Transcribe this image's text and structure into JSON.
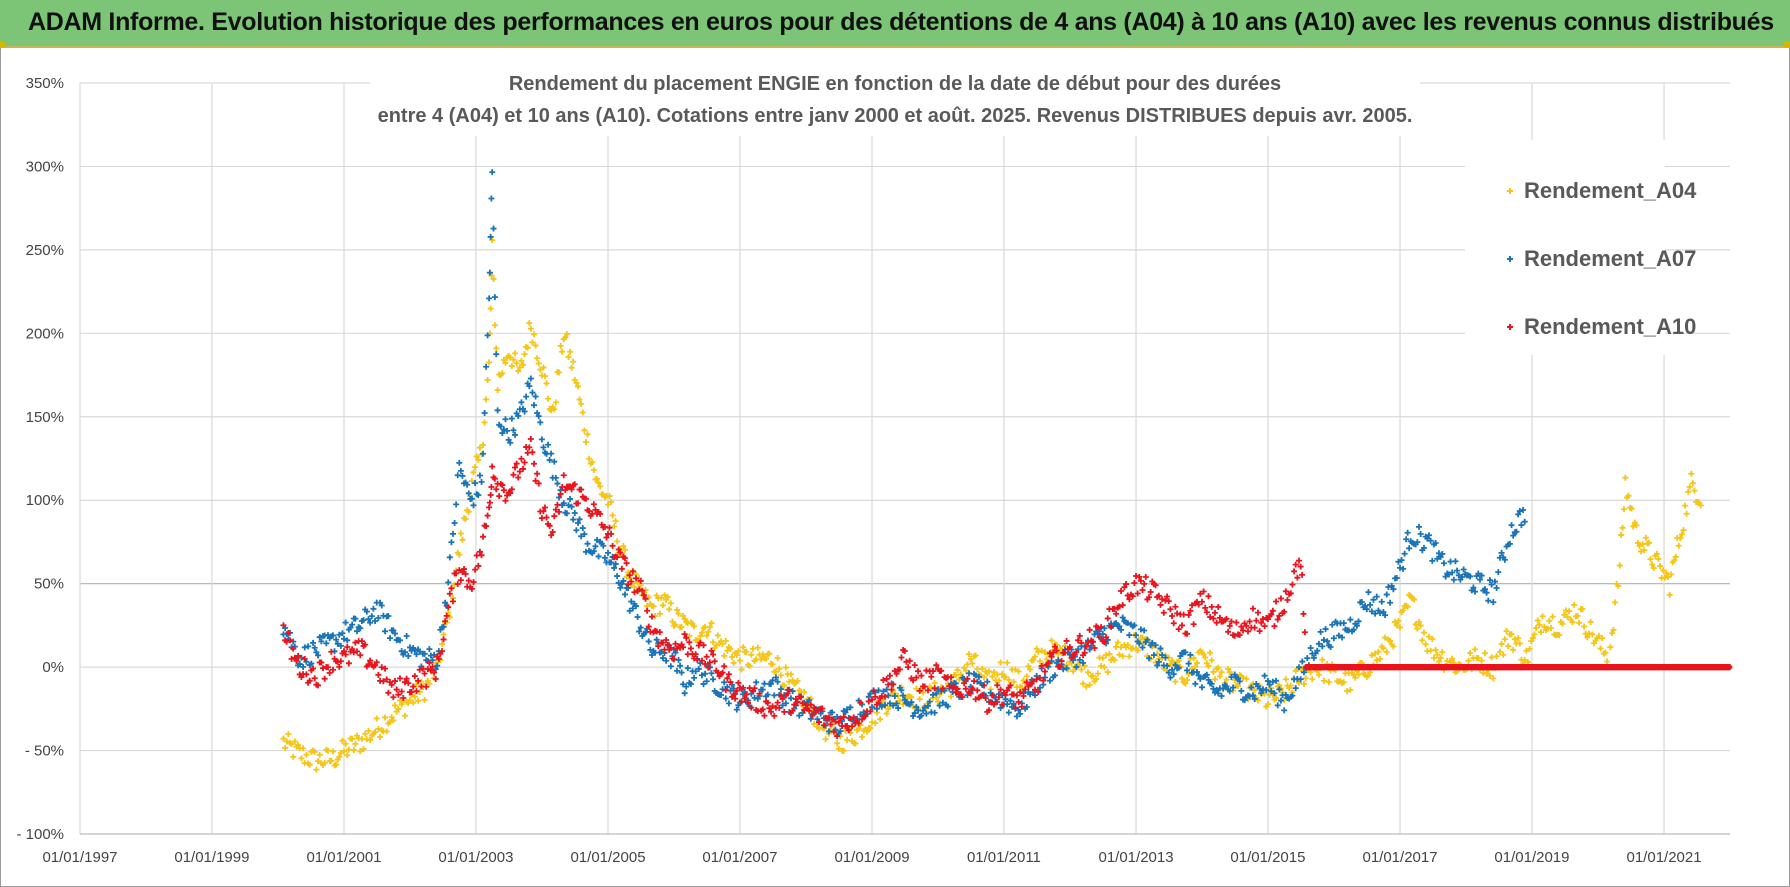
{
  "banner": {
    "title": "ADAM Informe. Evolution historique des performances en euros pour des détentions de 4 ans (A04) à 10 ans (A10) avec les revenus connus distribués",
    "color": "#7cc576"
  },
  "chart_data": {
    "type": "scatter",
    "title_line1": "Rendement du placement ENGIE en fonction de la date de début pour des durées",
    "title_line2": "entre 4 (A04) et 10 ans (A10).  Cotations entre janv 2000 et août. 2025. Revenus DISTRIBUES depuis avr. 2005.",
    "x_axis": {
      "type": "date",
      "range": [
        "1997-01-01",
        "2022-01-01"
      ],
      "tick_labels": [
        "01/01/1997",
        "01/01/1999",
        "01/01/2001",
        "01/01/2003",
        "01/01/2005",
        "01/01/2007",
        "01/01/2009",
        "01/01/2011",
        "01/01/2013",
        "01/01/2015",
        "01/01/2017",
        "01/01/2019",
        "01/01/2021"
      ]
    },
    "y_axis": {
      "range": [
        -100,
        350
      ],
      "unit": "%",
      "tick_values": [
        -100,
        -50,
        0,
        50,
        100,
        150,
        200,
        250,
        300,
        350
      ],
      "tick_labels": [
        "- 100%",
        "- 50%",
        "0%",
        "50%",
        "100%",
        "150%",
        "200%",
        "250%",
        "300%",
        "350%"
      ]
    },
    "grid": true,
    "legend_position": "top-right",
    "marker": "+",
    "series": [
      {
        "name": "Rendement_A04",
        "color": "#f5c518",
        "points": [
          [
            "2000-02-01",
            -45
          ],
          [
            "2000-05-01",
            -52
          ],
          [
            "2000-08-01",
            -56
          ],
          [
            "2000-11-01",
            -55
          ],
          [
            "2001-01-01",
            -50
          ],
          [
            "2001-04-01",
            -45
          ],
          [
            "2001-07-01",
            -37
          ],
          [
            "2001-10-01",
            -28
          ],
          [
            "2002-01-01",
            -20
          ],
          [
            "2002-04-01",
            -12
          ],
          [
            "2002-06-01",
            0
          ],
          [
            "2002-08-01",
            30
          ],
          [
            "2002-10-01",
            70
          ],
          [
            "2002-12-01",
            105
          ],
          [
            "2003-02-01",
            130
          ],
          [
            "2003-03-15",
            180
          ],
          [
            "2003-04-01",
            250
          ],
          [
            "2003-05-01",
            170
          ],
          [
            "2003-07-01",
            190
          ],
          [
            "2003-09-01",
            175
          ],
          [
            "2003-11-01",
            205
          ],
          [
            "2004-01-01",
            180
          ],
          [
            "2004-03-01",
            150
          ],
          [
            "2004-05-01",
            200
          ],
          [
            "2004-07-01",
            175
          ],
          [
            "2004-09-01",
            140
          ],
          [
            "2004-11-01",
            110
          ],
          [
            "2005-01-01",
            100
          ],
          [
            "2005-03-01",
            75
          ],
          [
            "2005-05-01",
            55
          ],
          [
            "2005-07-01",
            45
          ],
          [
            "2005-09-01",
            35
          ],
          [
            "2005-11-01",
            40
          ],
          [
            "2006-01-01",
            30
          ],
          [
            "2006-03-01",
            25
          ],
          [
            "2006-05-01",
            20
          ],
          [
            "2006-07-01",
            25
          ],
          [
            "2006-09-01",
            15
          ],
          [
            "2006-11-01",
            10
          ],
          [
            "2007-01-01",
            5
          ],
          [
            "2007-04-01",
            5
          ],
          [
            "2007-07-01",
            5
          ],
          [
            "2007-10-01",
            -10
          ],
          [
            "2008-01-01",
            -20
          ],
          [
            "2008-04-01",
            -35
          ],
          [
            "2008-07-01",
            -45
          ],
          [
            "2008-10-01",
            -40
          ],
          [
            "2009-01-01",
            -30
          ],
          [
            "2009-04-01",
            -20
          ],
          [
            "2009-07-01",
            -15
          ],
          [
            "2009-10-01",
            -20
          ],
          [
            "2010-01-01",
            -15
          ],
          [
            "2010-04-01",
            -10
          ],
          [
            "2010-07-01",
            5
          ],
          [
            "2010-10-01",
            -10
          ],
          [
            "2011-01-01",
            0
          ],
          [
            "2011-04-01",
            -10
          ],
          [
            "2011-07-01",
            5
          ],
          [
            "2011-10-01",
            10
          ],
          [
            "2012-01-01",
            5
          ],
          [
            "2012-04-01",
            -5
          ],
          [
            "2012-07-01",
            0
          ],
          [
            "2012-10-01",
            10
          ],
          [
            "2013-01-01",
            15
          ],
          [
            "2013-04-01",
            10
          ],
          [
            "2013-07-01",
            0
          ],
          [
            "2013-10-01",
            -5
          ],
          [
            "2014-01-01",
            10
          ],
          [
            "2014-04-01",
            -5
          ],
          [
            "2014-07-01",
            -10
          ],
          [
            "2014-10-01",
            -15
          ],
          [
            "2015-01-01",
            -20
          ],
          [
            "2015-04-01",
            -15
          ],
          [
            "2015-07-01",
            -5
          ],
          [
            "2015-10-01",
            0
          ],
          [
            "2016-01-01",
            -5
          ],
          [
            "2016-04-01",
            -10
          ],
          [
            "2016-07-01",
            0
          ],
          [
            "2016-10-01",
            10
          ],
          [
            "2017-01-01",
            25
          ],
          [
            "2017-03-01",
            40
          ],
          [
            "2017-06-01",
            15
          ],
          [
            "2017-09-01",
            5
          ],
          [
            "2017-12-01",
            0
          ],
          [
            "2018-03-01",
            5
          ],
          [
            "2018-06-01",
            0
          ],
          [
            "2018-09-01",
            20
          ],
          [
            "2018-12-01",
            5
          ],
          [
            "2019-03-01",
            30
          ],
          [
            "2019-06-01",
            25
          ],
          [
            "2019-09-01",
            35
          ],
          [
            "2019-12-01",
            20
          ],
          [
            "2020-03-01",
            5
          ],
          [
            "2020-05-01",
            60
          ],
          [
            "2020-06-01",
            110
          ],
          [
            "2020-08-01",
            80
          ],
          [
            "2020-10-01",
            70
          ],
          [
            "2020-12-01",
            60
          ],
          [
            "2021-02-01",
            50
          ],
          [
            "2021-04-01",
            80
          ],
          [
            "2021-06-01",
            110
          ],
          [
            "2021-08-01",
            100
          ]
        ]
      },
      {
        "name": "Rendement_A07",
        "color": "#1a74b8",
        "points": [
          [
            "2000-02-01",
            25
          ],
          [
            "2000-05-01",
            5
          ],
          [
            "2000-08-01",
            10
          ],
          [
            "2000-11-01",
            15
          ],
          [
            "2001-01-01",
            20
          ],
          [
            "2001-04-01",
            25
          ],
          [
            "2001-07-01",
            35
          ],
          [
            "2001-10-01",
            20
          ],
          [
            "2002-01-01",
            10
          ],
          [
            "2002-04-01",
            5
          ],
          [
            "2002-06-01",
            5
          ],
          [
            "2002-08-01",
            50
          ],
          [
            "2002-10-01",
            120
          ],
          [
            "2002-12-01",
            100
          ],
          [
            "2003-02-01",
            110
          ],
          [
            "2003-03-15",
            220
          ],
          [
            "2003-04-01",
            295
          ],
          [
            "2003-05-01",
            150
          ],
          [
            "2003-07-01",
            140
          ],
          [
            "2003-09-01",
            150
          ],
          [
            "2003-11-01",
            170
          ],
          [
            "2004-01-01",
            140
          ],
          [
            "2004-03-01",
            120
          ],
          [
            "2004-05-01",
            100
          ],
          [
            "2004-07-01",
            90
          ],
          [
            "2004-09-01",
            75
          ],
          [
            "2004-11-01",
            70
          ],
          [
            "2005-01-01",
            65
          ],
          [
            "2005-03-01",
            55
          ],
          [
            "2005-05-01",
            40
          ],
          [
            "2005-07-01",
            25
          ],
          [
            "2005-09-01",
            10
          ],
          [
            "2005-11-01",
            10
          ],
          [
            "2006-01-01",
            5
          ],
          [
            "2006-03-01",
            -10
          ],
          [
            "2006-05-01",
            0
          ],
          [
            "2006-07-01",
            -5
          ],
          [
            "2006-09-01",
            -10
          ],
          [
            "2006-11-01",
            -15
          ],
          [
            "2007-01-01",
            -20
          ],
          [
            "2007-04-01",
            -15
          ],
          [
            "2007-07-01",
            -10
          ],
          [
            "2007-10-01",
            -20
          ],
          [
            "2008-01-01",
            -25
          ],
          [
            "2008-04-01",
            -30
          ],
          [
            "2008-07-01",
            -35
          ],
          [
            "2008-10-01",
            -25
          ],
          [
            "2009-01-01",
            -20
          ],
          [
            "2009-04-01",
            -15
          ],
          [
            "2009-07-01",
            -20
          ],
          [
            "2009-10-01",
            -25
          ],
          [
            "2010-01-01",
            -20
          ],
          [
            "2010-04-01",
            -15
          ],
          [
            "2010-07-01",
            -10
          ],
          [
            "2010-10-01",
            -15
          ],
          [
            "2011-01-01",
            -20
          ],
          [
            "2011-04-01",
            -25
          ],
          [
            "2011-07-01",
            -10
          ],
          [
            "2011-10-01",
            0
          ],
          [
            "2012-01-01",
            5
          ],
          [
            "2012-04-01",
            10
          ],
          [
            "2012-07-01",
            20
          ],
          [
            "2012-10-01",
            25
          ],
          [
            "2013-01-01",
            20
          ],
          [
            "2013-04-01",
            10
          ],
          [
            "2013-07-01",
            0
          ],
          [
            "2013-10-01",
            5
          ],
          [
            "2014-01-01",
            -10
          ],
          [
            "2014-04-01",
            -15
          ],
          [
            "2014-07-01",
            -10
          ],
          [
            "2014-10-01",
            -15
          ],
          [
            "2015-01-01",
            -10
          ],
          [
            "2015-04-01",
            -20
          ],
          [
            "2015-07-01",
            -5
          ],
          [
            "2015-10-01",
            15
          ],
          [
            "2016-01-01",
            20
          ],
          [
            "2016-04-01",
            25
          ],
          [
            "2016-07-01",
            40
          ],
          [
            "2016-10-01",
            35
          ],
          [
            "2017-01-01",
            60
          ],
          [
            "2017-03-01",
            80
          ],
          [
            "2017-06-01",
            75
          ],
          [
            "2017-09-01",
            60
          ],
          [
            "2017-12-01",
            55
          ],
          [
            "2018-03-01",
            50
          ],
          [
            "2018-06-01",
            45
          ],
          [
            "2018-09-01",
            80
          ],
          [
            "2018-12-01",
            95
          ]
        ]
      },
      {
        "name": "Rendement_A10",
        "color": "#e8141e",
        "points": [
          [
            "2000-02-01",
            20
          ],
          [
            "2000-05-01",
            0
          ],
          [
            "2000-08-01",
            -5
          ],
          [
            "2000-11-01",
            5
          ],
          [
            "2001-01-01",
            5
          ],
          [
            "2001-04-01",
            10
          ],
          [
            "2001-07-01",
            0
          ],
          [
            "2001-10-01",
            -15
          ],
          [
            "2002-01-01",
            -10
          ],
          [
            "2002-04-01",
            -5
          ],
          [
            "2002-06-01",
            0
          ],
          [
            "2002-08-01",
            35
          ],
          [
            "2002-10-01",
            60
          ],
          [
            "2002-12-01",
            50
          ],
          [
            "2003-02-01",
            70
          ],
          [
            "2003-03-15",
            95
          ],
          [
            "2003-04-01",
            120
          ],
          [
            "2003-05-01",
            110
          ],
          [
            "2003-07-01",
            105
          ],
          [
            "2003-09-01",
            120
          ],
          [
            "2003-11-01",
            130
          ],
          [
            "2004-01-01",
            95
          ],
          [
            "2004-03-01",
            80
          ],
          [
            "2004-05-01",
            110
          ],
          [
            "2004-07-01",
            105
          ],
          [
            "2004-09-01",
            100
          ],
          [
            "2004-11-01",
            90
          ],
          [
            "2005-01-01",
            80
          ],
          [
            "2005-03-01",
            65
          ],
          [
            "2005-05-01",
            55
          ],
          [
            "2005-07-01",
            45
          ],
          [
            "2005-09-01",
            25
          ],
          [
            "2005-11-01",
            15
          ],
          [
            "2006-01-01",
            10
          ],
          [
            "2006-03-01",
            15
          ],
          [
            "2006-05-01",
            10
          ],
          [
            "2006-07-01",
            5
          ],
          [
            "2006-09-01",
            0
          ],
          [
            "2006-11-01",
            -10
          ],
          [
            "2007-01-01",
            -15
          ],
          [
            "2007-04-01",
            -20
          ],
          [
            "2007-07-01",
            -25
          ],
          [
            "2007-10-01",
            -20
          ],
          [
            "2008-01-01",
            -25
          ],
          [
            "2008-04-01",
            -30
          ],
          [
            "2008-07-01",
            -35
          ],
          [
            "2008-10-01",
            -30
          ],
          [
            "2009-01-01",
            -20
          ],
          [
            "2009-04-01",
            -10
          ],
          [
            "2009-07-01",
            5
          ],
          [
            "2009-10-01",
            -10
          ],
          [
            "2010-01-01",
            -5
          ],
          [
            "2010-04-01",
            -15
          ],
          [
            "2010-07-01",
            -10
          ],
          [
            "2010-10-01",
            -20
          ],
          [
            "2011-01-01",
            -15
          ],
          [
            "2011-04-01",
            -20
          ],
          [
            "2011-07-01",
            -10
          ],
          [
            "2011-10-01",
            5
          ],
          [
            "2012-01-01",
            10
          ],
          [
            "2012-04-01",
            15
          ],
          [
            "2012-07-01",
            20
          ],
          [
            "2012-10-01",
            40
          ],
          [
            "2013-01-01",
            50
          ],
          [
            "2013-04-01",
            45
          ],
          [
            "2013-07-01",
            35
          ],
          [
            "2013-10-01",
            25
          ],
          [
            "2014-01-01",
            40
          ],
          [
            "2014-04-01",
            30
          ],
          [
            "2014-07-01",
            20
          ],
          [
            "2014-10-01",
            30
          ],
          [
            "2015-01-01",
            25
          ],
          [
            "2015-04-01",
            40
          ],
          [
            "2015-07-01",
            65
          ],
          [
            "2015-08-01",
            0
          ],
          [
            "2016-01-01",
            0
          ],
          [
            "2017-01-01",
            0
          ],
          [
            "2018-01-01",
            0
          ],
          [
            "2019-01-01",
            0
          ],
          [
            "2020-01-01",
            0
          ],
          [
            "2021-01-01",
            0
          ],
          [
            "2021-12-31",
            0
          ]
        ]
      }
    ]
  }
}
